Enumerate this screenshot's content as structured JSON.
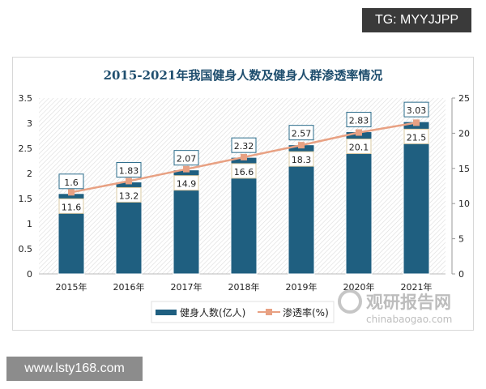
{
  "watermarks": {
    "top_right": "TG: MYYJJPP",
    "bottom_left": "www.lsty168.com",
    "logo": "观研报告网 chinabaogao.com"
  },
  "colors": {
    "bar": "#1f5f80",
    "line": "#e8a183",
    "title": "#1f4e6e"
  },
  "chart_data": {
    "type": "bar",
    "title": "2015-2021年我国健身人数及健身人群渗透率情况",
    "categories": [
      "2015年",
      "2016年",
      "2017年",
      "2018年",
      "2019年",
      "2020年",
      "2021年"
    ],
    "series": [
      {
        "name": "健身人数(亿人)",
        "type": "bar",
        "axis": "left",
        "values": [
          1.6,
          1.83,
          2.07,
          2.32,
          2.57,
          2.83,
          3.03
        ]
      },
      {
        "name": "渗透率(%)",
        "type": "line",
        "axis": "right",
        "values": [
          11.6,
          13.2,
          14.9,
          16.6,
          18.3,
          20.1,
          21.5
        ]
      }
    ],
    "ylim_left": [
      0,
      3.5
    ],
    "yticks_left": [
      "0",
      "0.5",
      "1",
      "1.5",
      "2",
      "2.5",
      "3",
      "3.5"
    ],
    "ylim_right": [
      0,
      25
    ],
    "yticks_right": [
      "0",
      "5",
      "10",
      "15",
      "20",
      "25"
    ],
    "legend": "bottom",
    "grid": false
  }
}
